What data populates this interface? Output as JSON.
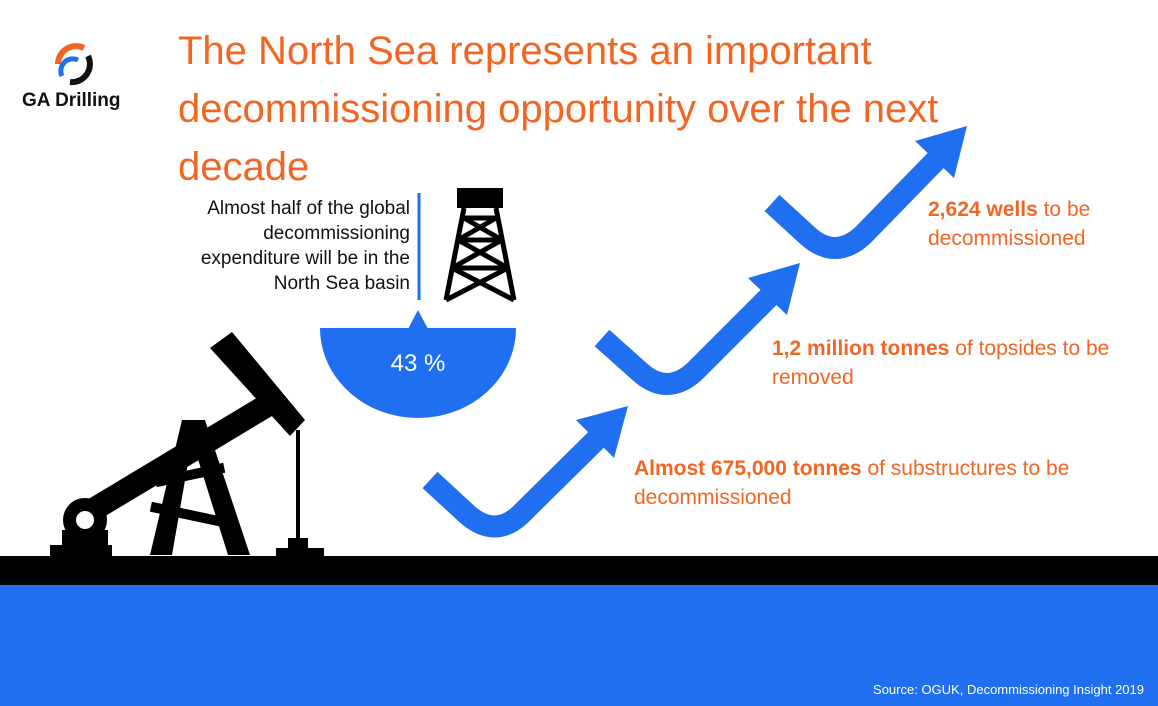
{
  "logo": {
    "name": "GA Drilling"
  },
  "title": "The North Sea represents an important decommissioning opportunity over the next decade",
  "callout": {
    "text": "Almost half of the global decommissioning expenditure will be in the North Sea basin",
    "share_label": "43 %"
  },
  "facts": [
    {
      "highlight": "2,624 wells",
      "text": "to be decommissioned"
    },
    {
      "highlight": "1,2 million tonnes",
      "text": "of topsides to be removed"
    },
    {
      "highlight": "Almost 675,000 tonnes",
      "text": "of substructures to be decommissioned"
    }
  ],
  "source": "Source: OGUK, Decommissioning Insight 2019"
}
